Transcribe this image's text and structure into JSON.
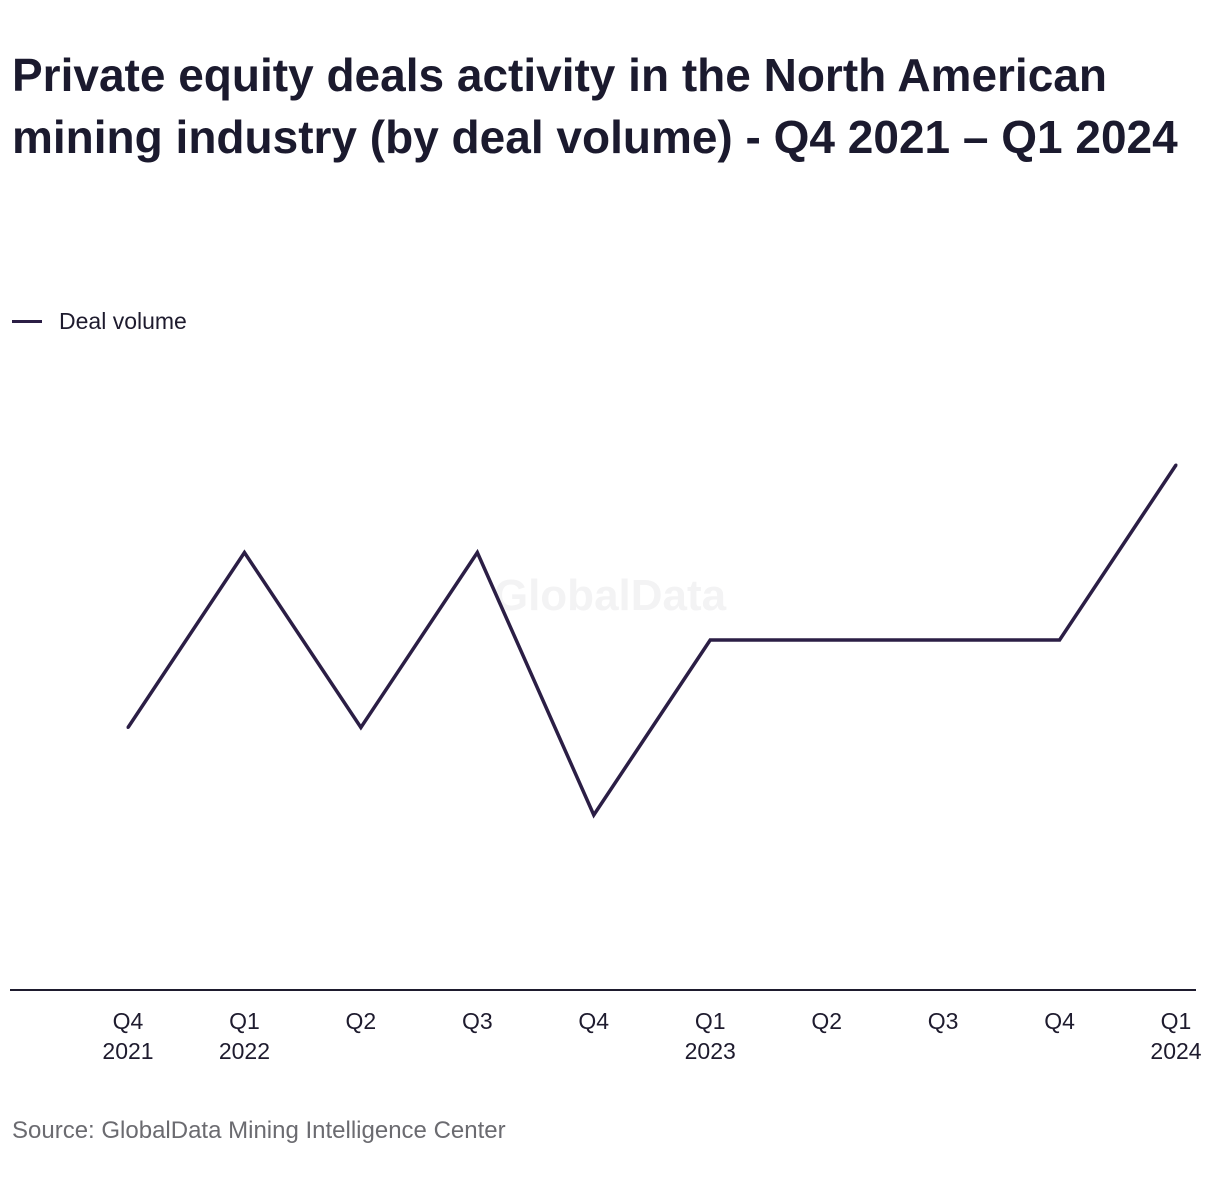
{
  "title": "Private equity deals activity in the North American mining industry (by deal volume) - Q4 2021 – Q1 2024",
  "legend": {
    "label": "Deal volume"
  },
  "watermark": "GlobalData",
  "source": "Source: GlobalData Mining Intelligence Center",
  "colors": {
    "line": "#2b1e45",
    "axis": "#1e1b2e",
    "text": "#1e1b2e",
    "source": "#6b6b70",
    "watermark": "#f3f3f4"
  },
  "chart_data": {
    "type": "line",
    "categories": [
      [
        "Q4",
        "2021"
      ],
      [
        "Q1",
        "2022"
      ],
      [
        "Q2"
      ],
      [
        "Q3"
      ],
      [
        "Q4"
      ],
      [
        "Q1",
        "2023"
      ],
      [
        "Q2"
      ],
      [
        "Q3"
      ],
      [
        "Q4"
      ],
      [
        "Q1",
        "2024"
      ]
    ],
    "series": [
      {
        "name": "Deal volume",
        "values": [
          3,
          5,
          3,
          5,
          2,
          4,
          4,
          4,
          4,
          6
        ]
      }
    ],
    "ylim": [
      0,
      8
    ],
    "grid": false,
    "y_axis_shown": false,
    "legend_position": "top-left"
  }
}
